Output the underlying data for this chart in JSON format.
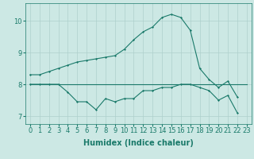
{
  "xlabel": "Humidex (Indice chaleur)",
  "x": [
    0,
    1,
    2,
    3,
    4,
    5,
    6,
    7,
    8,
    9,
    10,
    11,
    12,
    13,
    14,
    15,
    16,
    17,
    18,
    19,
    20,
    21,
    22,
    23
  ],
  "line1": [
    8.3,
    8.3,
    8.4,
    8.5,
    8.6,
    8.7,
    8.75,
    8.8,
    8.85,
    8.9,
    9.1,
    9.4,
    9.65,
    9.8,
    10.1,
    10.2,
    10.1,
    9.7,
    8.5,
    8.15,
    7.9,
    8.1,
    7.6,
    null
  ],
  "line2": [
    8.0,
    8.0,
    8.0,
    8.0,
    8.0,
    8.0,
    8.0,
    8.0,
    8.0,
    8.0,
    8.0,
    8.0,
    8.0,
    8.0,
    8.0,
    8.0,
    8.0,
    8.0,
    8.0,
    8.0,
    8.0,
    8.0,
    8.0,
    8.0
  ],
  "line3": [
    8.0,
    8.0,
    8.0,
    8.0,
    7.75,
    7.45,
    7.45,
    7.2,
    7.55,
    7.45,
    7.55,
    7.55,
    7.8,
    7.8,
    7.9,
    7.9,
    8.0,
    8.0,
    7.9,
    7.8,
    7.5,
    7.65,
    7.1,
    null
  ],
  "line_color": "#1a7a6a",
  "bg_color": "#cce8e4",
  "grid_color": "#aed0cc",
  "ylim": [
    6.75,
    10.55
  ],
  "yticks": [
    7,
    8,
    9,
    10
  ],
  "xticks": [
    0,
    1,
    2,
    3,
    4,
    5,
    6,
    7,
    8,
    9,
    10,
    11,
    12,
    13,
    14,
    15,
    16,
    17,
    18,
    19,
    20,
    21,
    22,
    23
  ],
  "tick_fontsize": 6,
  "xlabel_fontsize": 7,
  "marker": "D",
  "marker_size": 1.5,
  "linewidth": 0.8
}
